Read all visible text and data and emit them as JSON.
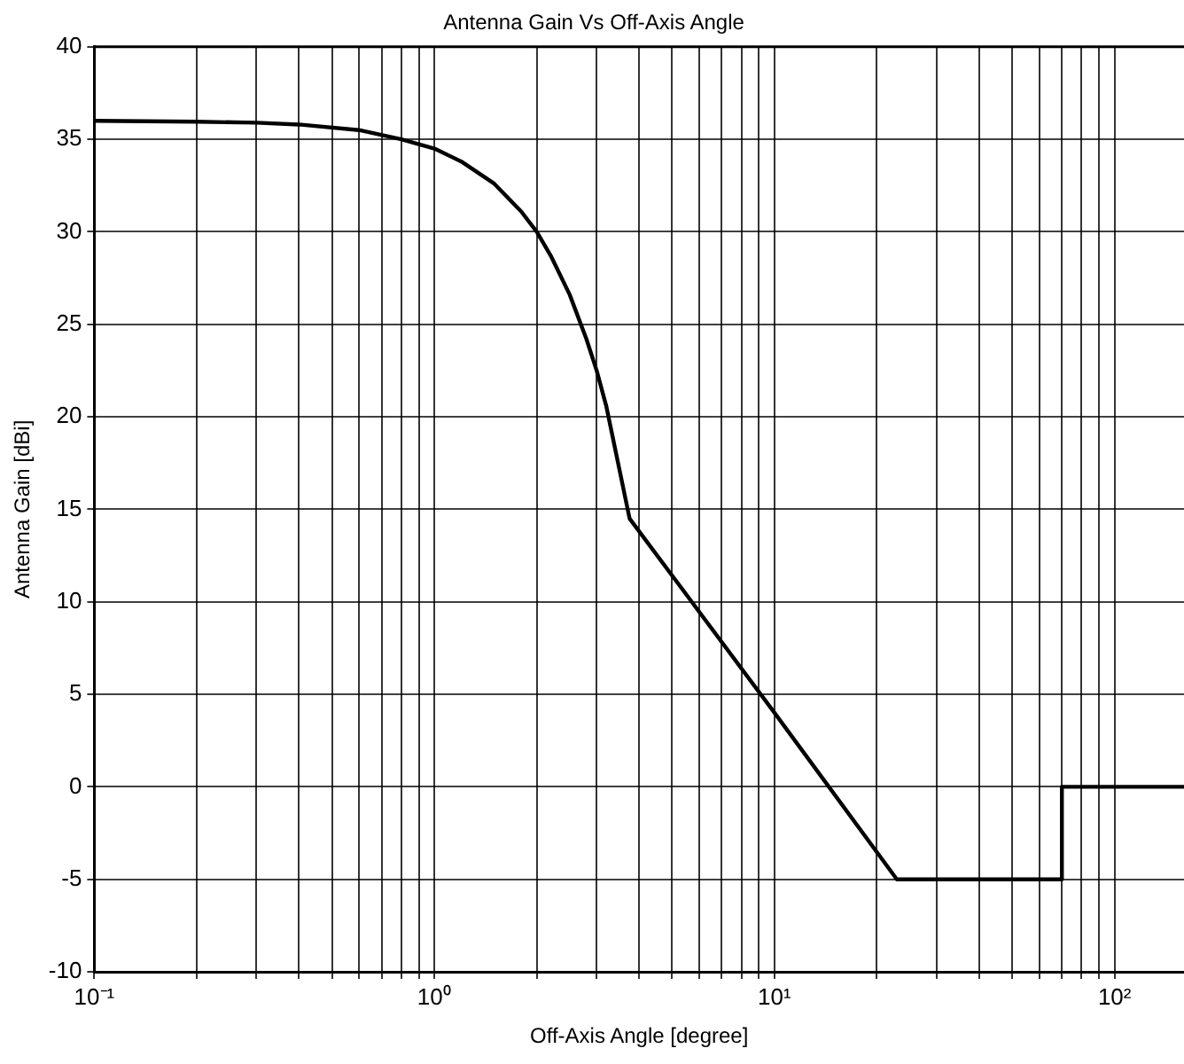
{
  "chart_data": {
    "type": "line",
    "title": "Antenna Gain Vs Off-Axis Angle",
    "xlabel": "Off-Axis Angle [degree]",
    "ylabel": "Antenna Gain [dBi]",
    "log": "x",
    "grid": true,
    "line_style": "solid",
    "marker": "none",
    "x": [
      0.1,
      0.2,
      0.3,
      0.4,
      0.6,
      0.8,
      1,
      1.2,
      1.5,
      1.8,
      2,
      2.2,
      2.5,
      2.8,
      3,
      3.2,
      3.75,
      10,
      22.9,
      70,
      70,
      160
    ],
    "series": [
      {
        "color": "#000000",
        "values": [
          36,
          35.95,
          35.9,
          35.8,
          35.5,
          35,
          34.5,
          33.8,
          32.6,
          31.1,
          30,
          28.7,
          26.6,
          24.2,
          22.5,
          20.6,
          14.5,
          4,
          -5,
          -5,
          0,
          0
        ]
      }
    ],
    "xlim": [
      0.1,
      160
    ],
    "xticks": [
      {
        "value": 0.1,
        "label": "10⁻¹"
      },
      {
        "value": 0.2,
        "label": null
      },
      {
        "value": 0.3,
        "label": null
      },
      {
        "value": 0.4,
        "label": null
      },
      {
        "value": 0.5,
        "label": null
      },
      {
        "value": 0.6,
        "label": null
      },
      {
        "value": 0.7,
        "label": null
      },
      {
        "value": 0.8,
        "label": null
      },
      {
        "value": 0.9,
        "label": null
      },
      {
        "value": 1,
        "label": "10⁰"
      },
      {
        "value": 2,
        "label": null
      },
      {
        "value": 3,
        "label": null
      },
      {
        "value": 4,
        "label": null
      },
      {
        "value": 5,
        "label": null
      },
      {
        "value": 6,
        "label": null
      },
      {
        "value": 7,
        "label": null
      },
      {
        "value": 8,
        "label": null
      },
      {
        "value": 9,
        "label": null
      },
      {
        "value": 10,
        "label": "10¹"
      },
      {
        "value": 20,
        "label": null
      },
      {
        "value": 30,
        "label": null
      },
      {
        "value": 40,
        "label": null
      },
      {
        "value": 50,
        "label": null
      },
      {
        "value": 60,
        "label": null
      },
      {
        "value": 70,
        "label": null
      },
      {
        "value": 80,
        "label": null
      },
      {
        "value": 90,
        "label": null
      },
      {
        "value": 100,
        "label": "10²"
      }
    ],
    "ylim": [
      -10,
      40
    ],
    "yticks": [
      -10,
      -5,
      0,
      5,
      10,
      15,
      20,
      25,
      30,
      35,
      40
    ]
  }
}
